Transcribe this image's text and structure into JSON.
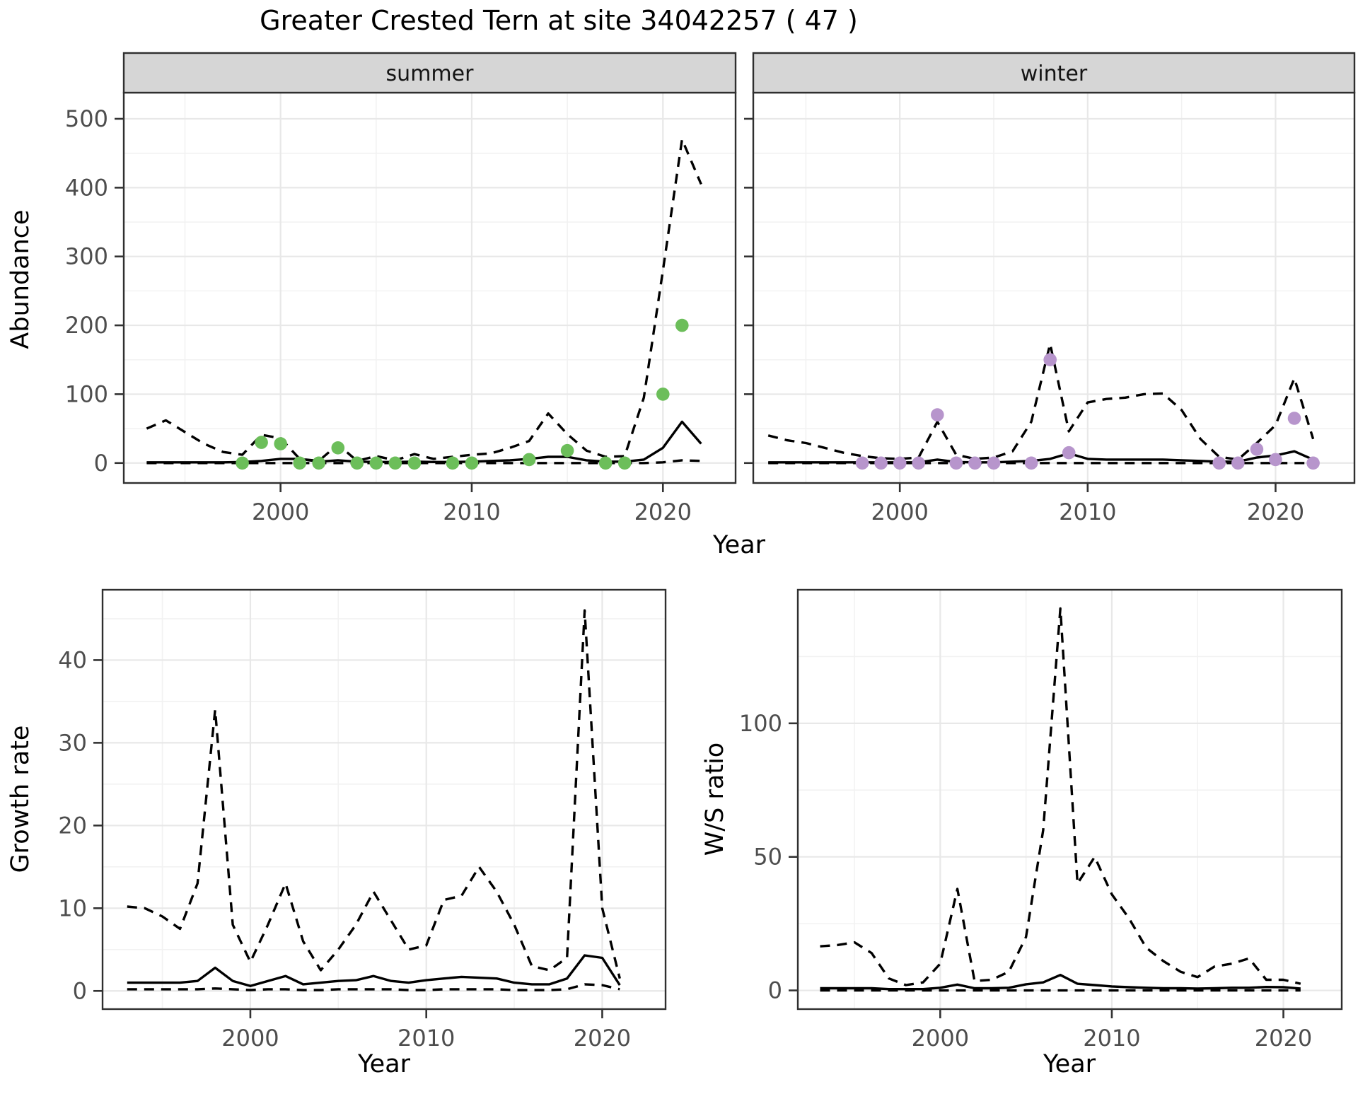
{
  "labels": {
    "title": "Greater Crested Tern at site 34042257 ( 47 )",
    "y_top": "Abundance",
    "y_growth": "Growth rate",
    "y_ws": "W/S ratio",
    "x": "Year"
  },
  "colors": {
    "summer_points": "#6cbe5a",
    "winter_points": "#b795cc",
    "line": "#000000",
    "strip_fill": "#d6d6d6",
    "panel_border": "#2f2f2f",
    "grid_major": "#e8e8e8",
    "grid_minor": "#f2f2f2",
    "tick_text": "#4d4d4d"
  },
  "chart_data": [
    {
      "id": "abundance-summer",
      "type": "line",
      "facet_label": "summer",
      "ylabel": "Abundance",
      "xlabel": "Year",
      "xlim": [
        1991.8,
        2023.8
      ],
      "ylim": [
        -29,
        538
      ],
      "xticks": [
        2000,
        2010,
        2020
      ],
      "yticks": [
        0,
        100,
        200,
        300,
        400,
        500
      ],
      "show_y_tick_labels": true,
      "x": [
        1993,
        1994,
        1995,
        1996,
        1997,
        1998,
        1999,
        2000,
        2001,
        2002,
        2003,
        2004,
        2005,
        2006,
        2007,
        2008,
        2009,
        2010,
        2011,
        2012,
        2013,
        2014,
        2015,
        2016,
        2017,
        2018,
        2019,
        2020,
        2021,
        2022
      ],
      "series": [
        {
          "name": "upper_ci",
          "style": "dashed",
          "values": [
            50,
            62,
            45,
            28,
            16,
            12,
            41,
            36,
            6,
            3,
            27,
            3,
            10,
            4,
            13,
            6,
            9,
            12,
            14,
            22,
            32,
            72,
            42,
            18,
            9,
            10,
            95,
            280,
            470,
            405
          ]
        },
        {
          "name": "mean",
          "style": "solid",
          "values": [
            1,
            1,
            1,
            1,
            1,
            1.5,
            3,
            6,
            6,
            2,
            4,
            2,
            1.5,
            1.5,
            2,
            1.5,
            1.5,
            2,
            3,
            4,
            6,
            9,
            9,
            4,
            2,
            2,
            5,
            22,
            60,
            28
          ]
        },
        {
          "name": "lower_ci",
          "style": "dashed",
          "values": [
            0,
            0,
            0,
            0,
            0,
            0,
            0,
            0,
            0,
            0,
            0,
            0,
            0,
            0,
            0,
            0,
            0,
            0,
            0,
            0,
            0,
            0,
            0,
            0,
            0,
            0,
            0,
            1,
            4,
            3
          ]
        }
      ],
      "points": {
        "name": "observed",
        "color": "#6cbe5a",
        "x": [
          1998,
          1999,
          2000,
          2001,
          2002,
          2003,
          2004,
          2005,
          2006,
          2007,
          2009,
          2010,
          2013,
          2015,
          2017,
          2018,
          2020,
          2021
        ],
        "y": [
          0,
          30,
          28,
          0,
          0,
          22,
          0,
          0,
          0,
          0,
          0,
          0,
          5,
          18,
          0,
          0,
          100,
          200
        ]
      }
    },
    {
      "id": "abundance-winter",
      "type": "line",
      "facet_label": "winter",
      "ylabel": "Abundance",
      "xlabel": "Year",
      "xlim": [
        1992.2,
        2024.2
      ],
      "ylim": [
        -29,
        538
      ],
      "xticks": [
        2000,
        2010,
        2020
      ],
      "yticks": [
        0,
        100,
        200,
        300,
        400,
        500
      ],
      "show_y_tick_labels": false,
      "x": [
        1993,
        1994,
        1995,
        1996,
        1997,
        1998,
        1999,
        2000,
        2001,
        2002,
        2003,
        2004,
        2005,
        2006,
        2007,
        2008,
        2009,
        2010,
        2011,
        2012,
        2013,
        2014,
        2015,
        2016,
        2017,
        2018,
        2019,
        2020,
        2021,
        2022
      ],
      "series": [
        {
          "name": "upper_ci",
          "style": "dashed",
          "values": [
            40,
            33,
            29,
            22,
            15,
            10,
            7,
            6,
            8,
            60,
            12,
            6,
            8,
            17,
            60,
            173,
            46,
            88,
            93,
            95,
            100,
            101,
            77,
            35,
            9,
            5,
            29,
            55,
            123,
            35
          ]
        },
        {
          "name": "mean",
          "style": "solid",
          "values": [
            1,
            1,
            1,
            1,
            1,
            1,
            1,
            1,
            1,
            5,
            1.5,
            1,
            1,
            2,
            3,
            6,
            14,
            6,
            5,
            5,
            5,
            5,
            4,
            3,
            2,
            2,
            8,
            11,
            17,
            5
          ]
        },
        {
          "name": "lower_ci",
          "style": "dashed",
          "values": [
            0,
            0,
            0,
            0,
            0,
            0,
            0,
            0,
            0,
            0,
            0,
            0,
            0,
            0,
            0,
            0,
            0,
            0,
            0,
            0,
            0,
            0,
            0,
            0,
            0,
            0,
            0,
            0,
            0,
            0
          ]
        }
      ],
      "points": {
        "name": "observed",
        "color": "#b795cc",
        "x": [
          1998,
          1999,
          2000,
          2001,
          2002,
          2003,
          2004,
          2005,
          2007,
          2008,
          2009,
          2017,
          2018,
          2019,
          2020,
          2021,
          2022
        ],
        "y": [
          0,
          0,
          0,
          0,
          70,
          0,
          0,
          0,
          0,
          150,
          15,
          0,
          0,
          20,
          5,
          65,
          0
        ]
      }
    },
    {
      "id": "growth-rate",
      "type": "line",
      "facet_label": "",
      "ylabel": "Growth rate",
      "xlabel": "Year",
      "xlim": [
        1991.6,
        2023.6
      ],
      "ylim": [
        -2.2,
        48.5
      ],
      "xticks": [
        2000,
        2010,
        2020
      ],
      "yticks": [
        0,
        10,
        20,
        30,
        40
      ],
      "show_y_tick_labels": true,
      "x": [
        1993,
        1994,
        1995,
        1996,
        1997,
        1998,
        1999,
        2000,
        2001,
        2002,
        2003,
        2004,
        2005,
        2006,
        2007,
        2008,
        2009,
        2010,
        2011,
        2012,
        2013,
        2014,
        2015,
        2016,
        2017,
        2018,
        2019,
        2020,
        2021
      ],
      "series": [
        {
          "name": "upper_ci",
          "style": "dashed",
          "values": [
            10.2,
            10,
            9,
            7.5,
            13,
            34,
            8,
            3.5,
            8,
            13,
            6,
            2.5,
            5,
            8,
            12,
            8.5,
            5,
            5.5,
            11,
            11.5,
            15,
            12,
            8,
            3,
            2.5,
            4,
            46,
            10,
            1.5
          ]
        },
        {
          "name": "mean",
          "style": "solid",
          "values": [
            1,
            1,
            1,
            1,
            1.2,
            2.8,
            1.2,
            0.6,
            1.2,
            1.8,
            0.8,
            1,
            1.2,
            1.3,
            1.8,
            1.2,
            1,
            1.3,
            1.5,
            1.7,
            1.6,
            1.5,
            1,
            0.8,
            0.8,
            1.5,
            4.3,
            4,
            0.7
          ]
        },
        {
          "name": "lower_ci",
          "style": "dashed",
          "values": [
            0.2,
            0.2,
            0.2,
            0.2,
            0.2,
            0.3,
            0.2,
            0.1,
            0.2,
            0.2,
            0.1,
            0.1,
            0.2,
            0.2,
            0.2,
            0.2,
            0.1,
            0.1,
            0.2,
            0.2,
            0.2,
            0.2,
            0.1,
            0.1,
            0.1,
            0.2,
            0.8,
            0.7,
            0.2
          ]
        }
      ],
      "points": null
    },
    {
      "id": "ws-ratio",
      "type": "line",
      "facet_label": "",
      "ylabel": "W/S ratio",
      "xlabel": "Year",
      "xlim": [
        1991.7,
        2023.4
      ],
      "ylim": [
        -7,
        150
      ],
      "xticks": [
        2000,
        2010,
        2020
      ],
      "yticks": [
        0,
        50,
        100
      ],
      "show_y_tick_labels": true,
      "x": [
        1993,
        1994,
        1995,
        1996,
        1997,
        1998,
        1999,
        2000,
        2001,
        2002,
        2003,
        2004,
        2005,
        2006,
        2007,
        2008,
        2009,
        2010,
        2011,
        2012,
        2013,
        2014,
        2015,
        2016,
        2017,
        2018,
        2019,
        2020,
        2021
      ],
      "series": [
        {
          "name": "upper_ci",
          "style": "dashed",
          "values": [
            16.5,
            17,
            18,
            14,
            4.5,
            2,
            3,
            10,
            38,
            3.5,
            4,
            7,
            20,
            60,
            143,
            40,
            50,
            36,
            27,
            16,
            11,
            7,
            5,
            9,
            10,
            12,
            4,
            4,
            2.5
          ]
        },
        {
          "name": "mean",
          "style": "solid",
          "values": [
            0.8,
            0.8,
            0.8,
            0.8,
            0.5,
            0.5,
            0.5,
            1,
            2.2,
            0.8,
            0.8,
            1,
            2.3,
            3,
            5.8,
            2.5,
            2,
            1.5,
            1.2,
            1,
            0.8,
            0.8,
            0.7,
            0.8,
            1,
            1,
            1.3,
            1.2,
            0.7
          ]
        },
        {
          "name": "lower_ci",
          "style": "dashed",
          "values": [
            0,
            0,
            0,
            0,
            0,
            0,
            0,
            0,
            0,
            0,
            0,
            0,
            0,
            0,
            0,
            0,
            0,
            0,
            0,
            0,
            0,
            0,
            0,
            0,
            0,
            0,
            0,
            0,
            0
          ]
        }
      ],
      "points": null
    }
  ]
}
